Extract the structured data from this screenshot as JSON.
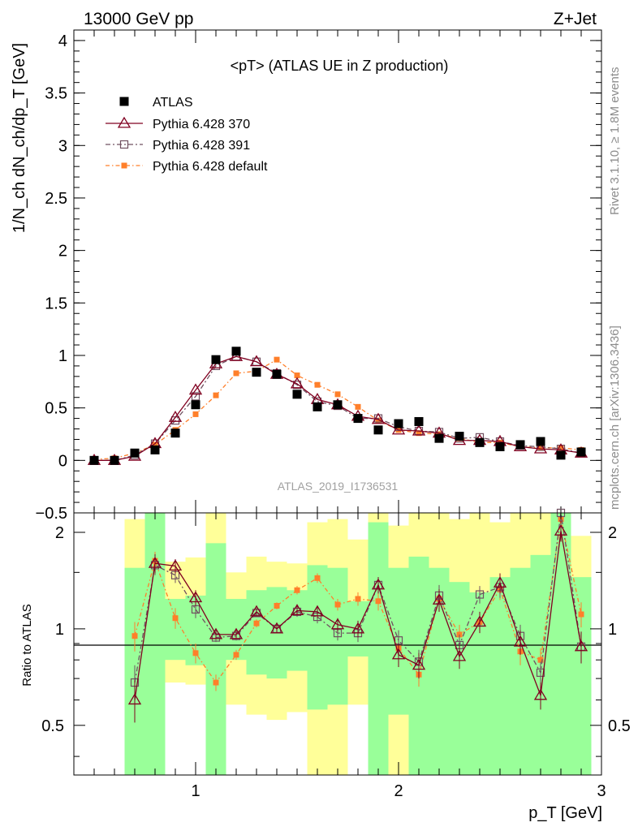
{
  "header": {
    "left": "13000 GeV pp",
    "right": "Z+Jet"
  },
  "side": {
    "rivet": "Rivet 3.1.10, ≥ 1.8M events",
    "mcplots": "mcplots.cern.ch [arXiv:1306.3436]"
  },
  "colors": {
    "atlas": "#000000",
    "p370": "#800020",
    "p391": "#705060",
    "pdef": "#ff7f2a",
    "band_green": "#99ff99",
    "band_yellow": "#ffff99"
  },
  "chart_data": [
    {
      "type": "line",
      "title": "<pT> (ATLAS UE in Z production)",
      "xlabel": "p_T [GeV]",
      "ylabel": "1/N_ch dN_ch/dp_T [GeV]",
      "xlim": [
        0.4,
        3.0
      ],
      "ylim": [
        -0.5,
        4.1
      ],
      "yticks": [
        "−0.5",
        "0",
        "0.5",
        "1",
        "1.5",
        "2",
        "2.5",
        "3",
        "3.5",
        "4"
      ],
      "watermark": "ATLAS_2019_I1736531",
      "x": [
        0.5,
        0.6,
        0.7,
        0.8,
        0.9,
        1.0,
        1.1,
        1.2,
        1.3,
        1.4,
        1.5,
        1.6,
        1.7,
        1.8,
        1.9,
        2.0,
        2.1,
        2.2,
        2.3,
        2.4,
        2.5,
        2.6,
        2.7,
        2.8,
        2.9
      ],
      "series": [
        {
          "name": "ATLAS",
          "values": [
            0.0,
            0.0,
            0.07,
            0.1,
            0.26,
            0.53,
            0.96,
            1.04,
            0.84,
            0.82,
            0.63,
            0.51,
            0.53,
            0.4,
            0.29,
            0.35,
            0.37,
            0.21,
            0.23,
            0.17,
            0.13,
            0.15,
            0.18,
            0.05,
            0.08
          ]
        },
        {
          "name": "Pythia 6.428 370",
          "values": [
            0.0,
            0.0,
            0.04,
            0.16,
            0.41,
            0.67,
            0.92,
            0.99,
            0.94,
            0.82,
            0.73,
            0.58,
            0.53,
            0.42,
            0.39,
            0.29,
            0.28,
            0.26,
            0.19,
            0.19,
            0.18,
            0.13,
            0.11,
            0.1,
            0.07
          ]
        },
        {
          "name": "Pythia 6.428 391",
          "values": [
            0.0,
            0.0,
            0.05,
            0.16,
            0.38,
            0.61,
            0.9,
            0.99,
            0.94,
            0.83,
            0.72,
            0.56,
            0.52,
            0.4,
            0.4,
            0.32,
            0.28,
            0.27,
            0.21,
            0.22,
            0.18,
            0.14,
            0.13,
            0.11,
            0.07
          ]
        },
        {
          "name": "Pythia 6.428 default",
          "values": [
            0.01,
            0.02,
            0.07,
            0.15,
            0.29,
            0.44,
            0.62,
            0.83,
            0.85,
            0.96,
            0.81,
            0.72,
            0.63,
            0.51,
            0.38,
            0.29,
            0.26,
            0.25,
            0.21,
            0.17,
            0.17,
            0.13,
            0.12,
            0.12,
            0.1
          ]
        }
      ]
    },
    {
      "type": "line",
      "title": "",
      "xlabel": "p_T [GeV]",
      "ylabel": "Ratio to ATLAS",
      "xlim": [
        0.4,
        3.0
      ],
      "ylim": [
        0.35,
        2.3
      ],
      "yticks": [
        "0.5",
        "1",
        "2"
      ],
      "xticks": [
        "1",
        "2",
        "3"
      ],
      "x": [
        0.7,
        0.8,
        0.9,
        1.0,
        1.1,
        1.2,
        1.3,
        1.4,
        1.5,
        1.6,
        1.7,
        1.8,
        1.9,
        2.0,
        2.1,
        2.2,
        2.3,
        2.4,
        2.5,
        2.6,
        2.7,
        2.8,
        2.9
      ],
      "band_x": [
        0.7,
        0.8,
        0.9,
        1.0,
        1.1,
        1.2,
        1.3,
        1.4,
        1.5,
        1.6,
        1.7,
        1.8,
        1.9,
        2.0,
        2.1,
        2.2,
        2.3,
        2.4,
        2.5,
        2.6,
        2.7,
        2.8,
        2.9
      ],
      "band_green_lo": [
        0.35,
        0.35,
        0.8,
        0.77,
        0.35,
        0.8,
        0.72,
        0.7,
        0.74,
        0.56,
        0.58,
        0.82,
        0.35,
        0.54,
        0.35,
        0.35,
        0.35,
        0.35,
        0.35,
        0.35,
        0.35,
        0.35,
        0.35
      ],
      "band_green_hi": [
        1.55,
        2.3,
        1.24,
        1.27,
        1.85,
        1.24,
        1.32,
        1.35,
        1.32,
        1.58,
        1.55,
        1.22,
        2.15,
        1.55,
        1.68,
        1.55,
        1.4,
        1.3,
        1.45,
        1.55,
        1.7,
        2.3,
        1.45
      ],
      "band_yellow_lo": [
        0.35,
        0.35,
        0.68,
        0.67,
        0.35,
        0.58,
        0.54,
        0.52,
        0.55,
        0.35,
        0.35,
        0.58,
        0.35,
        0.35,
        0.35,
        0.35,
        0.52,
        0.35,
        0.35,
        0.35,
        0.35,
        0.35,
        0.52
      ],
      "band_yellow_hi": [
        2.2,
        2.3,
        1.62,
        1.67,
        2.3,
        1.5,
        1.68,
        1.62,
        1.6,
        2.15,
        2.2,
        1.9,
        2.3,
        2.1,
        2.3,
        2.3,
        2.2,
        2.3,
        2.15,
        2.3,
        2.3,
        2.3,
        1.95
      ],
      "series": [
        {
          "name": "Pythia 6.428 370",
          "values": [
            0.6,
            1.6,
            1.57,
            1.25,
            0.96,
            0.96,
            1.13,
            1.0,
            1.14,
            1.13,
            1.03,
            1.0,
            1.37,
            0.83,
            0.77,
            1.23,
            0.82,
            1.05,
            1.39,
            0.91,
            0.62,
            2.02,
            0.88
          ],
          "err": [
            0.09,
            0.11,
            0.08,
            0.07,
            0.03,
            0.03,
            0.03,
            0.03,
            0.04,
            0.05,
            0.05,
            0.06,
            0.08,
            0.07,
            0.07,
            0.1,
            0.07,
            0.08,
            0.1,
            0.08,
            0.06,
            0.15,
            0.1
          ]
        },
        {
          "name": "Pythia 6.428 391",
          "values": [
            0.68,
            1.58,
            1.47,
            1.15,
            0.94,
            0.95,
            1.12,
            1.0,
            1.13,
            1.09,
            0.97,
            0.97,
            1.37,
            0.92,
            0.79,
            1.27,
            0.89,
            1.28,
            1.35,
            0.95,
            0.73,
            2.3,
            0.88
          ],
          "err": [
            0.09,
            0.11,
            0.08,
            0.07,
            0.03,
            0.03,
            0.03,
            0.03,
            0.04,
            0.05,
            0.05,
            0.06,
            0.08,
            0.07,
            0.07,
            0.1,
            0.07,
            0.08,
            0.1,
            0.08,
            0.06,
            0.15,
            0.1
          ]
        },
        {
          "name": "Pythia 6.428 default",
          "values": [
            0.95,
            1.63,
            1.08,
            0.84,
            0.68,
            0.83,
            1.04,
            1.18,
            1.32,
            1.44,
            1.19,
            1.24,
            1.22,
            0.87,
            0.72,
            1.24,
            0.96,
            1.05,
            1.33,
            0.85,
            0.8,
            2.2,
            1.11
          ],
          "err": [
            0.1,
            0.11,
            0.08,
            0.06,
            0.04,
            0.03,
            0.03,
            0.03,
            0.04,
            0.05,
            0.05,
            0.06,
            0.08,
            0.07,
            0.06,
            0.1,
            0.07,
            0.08,
            0.1,
            0.08,
            0.07,
            0.15,
            0.1
          ]
        }
      ]
    }
  ]
}
